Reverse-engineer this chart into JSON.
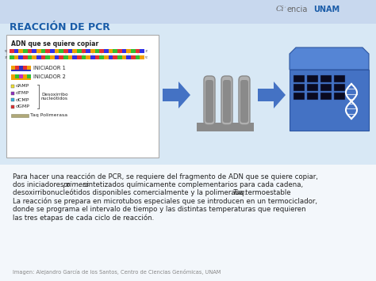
{
  "background_color": "#d8e8f5",
  "background_top": "#c8d8ee",
  "title": "REACCIÓN DE PCR",
  "title_color": "#1a5ca8",
  "title_fontsize": 9,
  "body_text_line1": "Para hacer una reacción de PCR, se requiere del fragmento de ADN que se quiere copiar,",
  "body_text_line2": "dos iniciadores o ",
  "body_text_line2b": "primers",
  "body_text_line2c": " sintetizados químicamente complementarios para cada cadena,",
  "body_text_line3": "desoxirribonucleótidos disponibles comercialmente y la polimerasa termoestable ",
  "body_text_line3b": "Taq.",
  "body_text_line4": "La reacción se prepara en microtubos especiales que se introducen en un termociclador,",
  "body_text_line5": "donde se programa el intervalo de tiempo y las distintas temperaturas que requieren",
  "body_text_line6": "las tres etapas de cada ciclo de reacción.",
  "caption": "Imagen: Alejandro García de los Santos, Centro de Ciencias Genómicas, UNAM",
  "panel_bg": "#ffffff",
  "arrow_color": "#4472c4",
  "adn_label": "ADN que se quiere copiar",
  "iniciador1": "INICIADOR 1",
  "iniciador2": "INICIADOR 2",
  "damp": "dAMP",
  "dtmp": "dTMP",
  "dcmp": "dCMP",
  "dgmp": "dGMP",
  "desoxiribo_line1": "Desoxirribo",
  "desoxiribo_line2": "nucleótidos",
  "taq": "Taq Polimerasa",
  "body_fontsize": 6.2,
  "caption_fontsize": 4.8,
  "tube_gray": "#8a8a8a",
  "tube_light": "#b0b0b0",
  "tc_blue": "#4472c4",
  "tc_dark": "#2d55a0",
  "tc_mid": "#3a62b8"
}
